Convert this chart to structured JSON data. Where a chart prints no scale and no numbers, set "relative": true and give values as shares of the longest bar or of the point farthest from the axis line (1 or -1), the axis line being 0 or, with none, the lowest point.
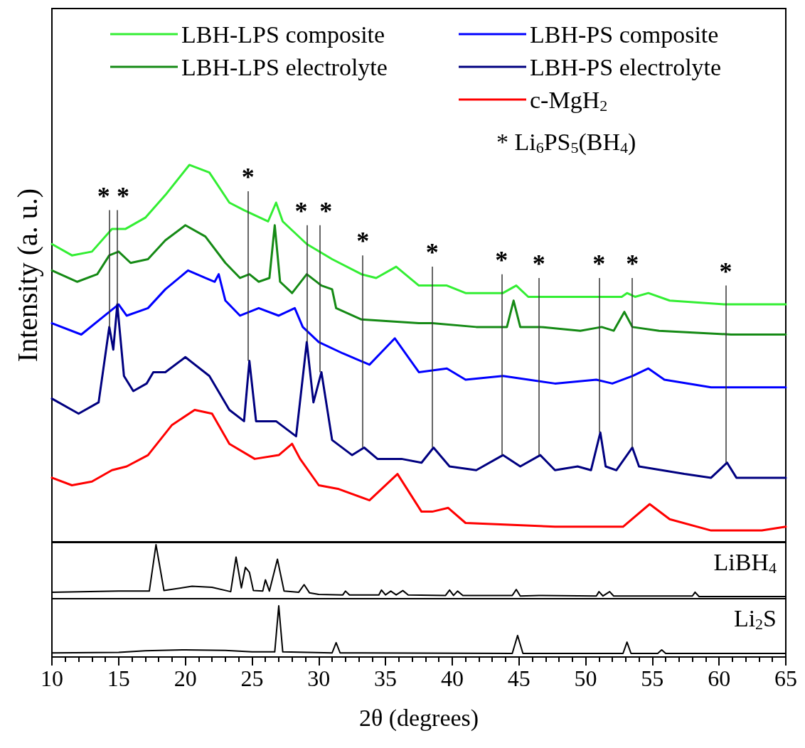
{
  "chart_data": [
    {
      "type": "line",
      "relative": true,
      "ylabel": "Intensity (a. u.)",
      "xlim": [
        10,
        65
      ],
      "tick_labels": false,
      "legend": "top right",
      "line_style": "solid",
      "series": [
        {
          "name": "LBH-LPS composite",
          "color": "#33ee33",
          "x": [
            10,
            11.5,
            13,
            14.5,
            15.5,
            17,
            18.5,
            20.3,
            21.8,
            23.3,
            24.4,
            26.2,
            26.8,
            27.3,
            29.1,
            31,
            33.2,
            34.3,
            35.8,
            37.5,
            38.5,
            39.6,
            41,
            43.8,
            44.8,
            45.7,
            49.6,
            52.7,
            53.1,
            53.7,
            54.7,
            56.3,
            60.4,
            65
          ],
          "values": [
            0.79,
            0.76,
            0.77,
            0.83,
            0.83,
            0.86,
            0.92,
            1.0,
            0.98,
            0.9,
            0.88,
            0.85,
            0.9,
            0.85,
            0.79,
            0.75,
            0.71,
            0.7,
            0.73,
            0.68,
            0.68,
            0.68,
            0.66,
            0.66,
            0.68,
            0.65,
            0.65,
            0.65,
            0.66,
            0.65,
            0.66,
            0.64,
            0.63,
            0.63
          ]
        },
        {
          "name": "LBH-LPS electrolyte",
          "color": "#158a15",
          "x": [
            10,
            11.9,
            13.4,
            14.3,
            15,
            15.9,
            17.2,
            18.5,
            20,
            21.5,
            23,
            24.1,
            24.8,
            25.5,
            26.3,
            26.7,
            27.1,
            28,
            29.1,
            30.2,
            31,
            31.3,
            33.2,
            37.5,
            38.5,
            41.8,
            44.1,
            44.6,
            45.1,
            46.6,
            49.6,
            51.2,
            52.1,
            52.9,
            53.5,
            55.5,
            60.9,
            65
          ],
          "values": [
            0.72,
            0.69,
            0.71,
            0.76,
            0.77,
            0.74,
            0.75,
            0.8,
            0.84,
            0.81,
            0.74,
            0.7,
            0.71,
            0.69,
            0.7,
            0.84,
            0.69,
            0.66,
            0.71,
            0.68,
            0.67,
            0.62,
            0.59,
            0.58,
            0.58,
            0.57,
            0.57,
            0.64,
            0.57,
            0.57,
            0.56,
            0.57,
            0.56,
            0.61,
            0.57,
            0.56,
            0.55,
            0.55
          ]
        },
        {
          "name": "LBH-PS composite",
          "color": "#0000ff",
          "x": [
            10,
            12.2,
            14.3,
            15,
            15.6,
            17.2,
            18.5,
            20.2,
            21.5,
            22.2,
            22.5,
            23,
            24.1,
            25.5,
            27,
            28.2,
            28.8,
            30,
            31.8,
            33.8,
            35.7,
            37.5,
            39.6,
            41,
            43.8,
            47.7,
            50.8,
            52,
            53.5,
            54.7,
            55.9,
            59.4,
            65
          ],
          "values": [
            0.58,
            0.55,
            0.61,
            0.63,
            0.6,
            0.62,
            0.67,
            0.72,
            0.7,
            0.69,
            0.71,
            0.64,
            0.6,
            0.62,
            0.6,
            0.62,
            0.57,
            0.53,
            0.5,
            0.47,
            0.54,
            0.45,
            0.46,
            0.43,
            0.44,
            0.42,
            0.43,
            0.42,
            0.44,
            0.46,
            0.43,
            0.41,
            0.41
          ]
        },
        {
          "name": "LBH-PS electrolyte",
          "color": "#000080",
          "x": [
            10,
            12,
            13.5,
            14.3,
            14.6,
            14.9,
            15.4,
            16.1,
            17.1,
            17.6,
            18.5,
            20,
            21.8,
            23.3,
            24.4,
            24.8,
            25.3,
            26.8,
            28.3,
            29.1,
            29.6,
            30.2,
            31,
            32.5,
            33.4,
            34.4,
            36.2,
            37.7,
            38.6,
            39.8,
            41.8,
            43.8,
            45.1,
            46.6,
            47.7,
            49.4,
            50.4,
            51.1,
            51.5,
            52.3,
            53.5,
            54,
            57.4,
            59.4,
            60.6,
            61.3,
            65
          ],
          "values": [
            0.38,
            0.34,
            0.37,
            0.57,
            0.51,
            0.63,
            0.44,
            0.4,
            0.42,
            0.45,
            0.45,
            0.49,
            0.44,
            0.35,
            0.32,
            0.48,
            0.32,
            0.32,
            0.28,
            0.53,
            0.37,
            0.45,
            0.27,
            0.23,
            0.25,
            0.22,
            0.22,
            0.21,
            0.25,
            0.2,
            0.19,
            0.23,
            0.2,
            0.23,
            0.19,
            0.2,
            0.19,
            0.29,
            0.2,
            0.19,
            0.25,
            0.2,
            0.18,
            0.17,
            0.21,
            0.17,
            0.17
          ]
        },
        {
          "name": "c-MgH$_{2}$",
          "color": "#ff0000",
          "x": [
            10,
            11.5,
            13,
            14.5,
            15.6,
            17.2,
            19,
            20.7,
            22,
            23.3,
            25.2,
            27,
            28,
            28.6,
            30,
            31.5,
            33.8,
            35.9,
            37.7,
            38.5,
            39.7,
            41,
            47.7,
            52.8,
            54.8,
            56.3,
            59.4,
            63.2,
            65
          ],
          "values": [
            0.17,
            0.15,
            0.16,
            0.19,
            0.2,
            0.23,
            0.31,
            0.35,
            0.34,
            0.26,
            0.22,
            0.23,
            0.26,
            0.22,
            0.15,
            0.14,
            0.11,
            0.18,
            0.08,
            0.08,
            0.09,
            0.05,
            0.04,
            0.04,
            0.1,
            0.06,
            0.03,
            0.03,
            0.04
          ]
        }
      ],
      "annotations": [
        {
          "text": "*",
          "x": 14.3,
          "y": 0.82
        },
        {
          "text": "*",
          "x": 14.9,
          "y": 0.83
        },
        {
          "text": "*",
          "x": 24.7,
          "y": 0.87
        },
        {
          "text": "*",
          "x": 29.1,
          "y": 0.79
        },
        {
          "text": "*",
          "x": 30.1,
          "y": 0.77
        },
        {
          "text": "*",
          "x": 33.3,
          "y": 0.71
        },
        {
          "text": "*",
          "x": 38.5,
          "y": 0.68
        },
        {
          "text": "*",
          "x": 43.7,
          "y": 0.66
        },
        {
          "text": "*",
          "x": 46.5,
          "y": 0.65
        },
        {
          "text": "*",
          "x": 51,
          "y": 0.65
        },
        {
          "text": "*",
          "x": 53.5,
          "y": 0.65
        },
        {
          "text": "*",
          "x": 60.5,
          "y": 0.63
        },
        "* Li$_{6}$PS$_{5}$(BH$_{4}$)"
      ]
    },
    {
      "type": "line",
      "relative": true,
      "xlim": [
        10,
        65
      ],
      "tick_labels": false,
      "series": [
        {
          "name": "LiBH$_{4}$",
          "color": "#000000",
          "x": [
            10,
            15,
            17.3,
            17.8,
            18.4,
            20.5,
            22,
            23.4,
            23.8,
            24.2,
            24.5,
            24.8,
            25.1,
            25.8,
            26,
            26.3,
            26.9,
            27.4,
            28.5,
            28.9,
            29.3,
            30,
            31.8,
            32,
            32.3,
            34.5,
            34.7,
            35,
            35.4,
            35.8,
            36.3,
            36.7,
            39.5,
            39.8,
            40.1,
            40.4,
            40.8,
            44.5,
            44.8,
            45.1,
            46.5,
            50.8,
            51,
            51.3,
            51.8,
            52.1,
            55.5,
            58,
            58.2,
            58.5,
            65
          ],
          "values": [
            0.12,
            0.14,
            0.14,
            1.0,
            0.15,
            0.23,
            0.21,
            0.13,
            0.77,
            0.2,
            0.58,
            0.49,
            0.15,
            0.14,
            0.35,
            0.14,
            0.73,
            0.14,
            0.12,
            0.26,
            0.11,
            0.08,
            0.07,
            0.14,
            0.07,
            0.07,
            0.16,
            0.07,
            0.14,
            0.07,
            0.15,
            0.07,
            0.06,
            0.16,
            0.06,
            0.14,
            0.06,
            0.06,
            0.17,
            0.05,
            0.06,
            0.05,
            0.13,
            0.05,
            0.13,
            0.05,
            0.05,
            0.05,
            0.12,
            0.04,
            0.04
          ]
        }
      ]
    },
    {
      "type": "line",
      "relative": true,
      "xlim": [
        10,
        65
      ],
      "xticks": [
        10,
        15,
        20,
        25,
        30,
        35,
        40,
        45,
        50,
        55,
        60,
        65
      ],
      "xlabel": "2θ (degrees)",
      "tick_labels": "x",
      "series": [
        {
          "name": "Li$_{2}$S",
          "color": "#000000",
          "x": [
            10,
            15,
            17,
            20,
            23,
            25,
            26.7,
            27,
            27.3,
            31,
            31.3,
            31.6,
            44.5,
            44.9,
            45.3,
            52.8,
            53.1,
            53.4,
            55.4,
            55.7,
            56,
            65
          ],
          "values": [
            0.08,
            0.09,
            0.12,
            0.14,
            0.13,
            0.1,
            0.1,
            1.0,
            0.1,
            0.08,
            0.28,
            0.08,
            0.07,
            0.42,
            0.07,
            0.07,
            0.29,
            0.07,
            0.07,
            0.14,
            0.07,
            0.07
          ]
        }
      ]
    }
  ]
}
